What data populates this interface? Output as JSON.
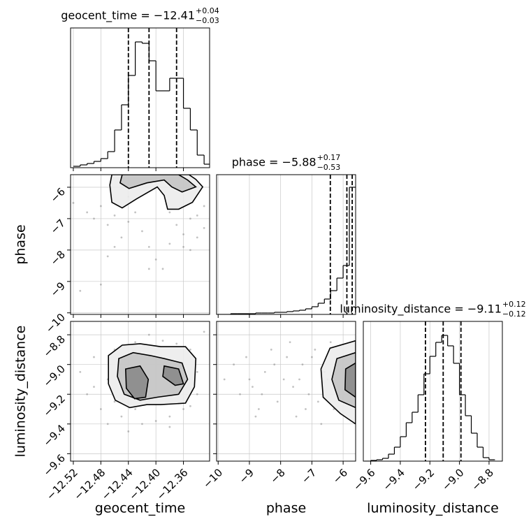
{
  "chart_data": {
    "type": "corner",
    "parameters": [
      {
        "name": "geocent_time",
        "lim": [
          -12.524,
          -12.322
        ],
        "ticks": [
          {
            "value": -12.52,
            "label": "−12.52"
          },
          {
            "value": -12.48,
            "label": "−12.48"
          },
          {
            "value": -12.44,
            "label": "−12.44"
          },
          {
            "value": -12.4,
            "label": "−12.40"
          },
          {
            "value": -12.36,
            "label": "−12.36"
          }
        ],
        "title": {
          "main": "geocent_time = −12.41",
          "upper": "+0.04",
          "lower": "−0.03"
        },
        "quantiles": [
          -12.44,
          -12.41,
          -12.37
        ],
        "hist": {
          "ylim": [
            0,
            200
          ],
          "bins": [
            -12.52,
            -12.51,
            -12.5,
            -12.49,
            -12.48,
            -12.47,
            -12.46,
            -12.45,
            -12.44,
            -12.43,
            -12.42,
            -12.41,
            -12.4,
            -12.39,
            -12.38,
            -12.37,
            -12.36,
            -12.35,
            -12.34,
            -12.33,
            -12.32
          ],
          "counts": [
            2,
            4,
            6,
            9,
            13,
            23,
            54,
            90,
            132,
            180,
            178,
            153,
            110,
            110,
            128,
            128,
            85,
            54,
            18,
            5
          ]
        }
      },
      {
        "name": "phase",
        "lim": [
          -10.05,
          -5.6
        ],
        "ticks": [
          {
            "value": -10,
            "label": "−10"
          },
          {
            "value": -9,
            "label": "−9"
          },
          {
            "value": -8,
            "label": "−8"
          },
          {
            "value": -7,
            "label": "−7"
          },
          {
            "value": -6,
            "label": "−6"
          }
        ],
        "title": {
          "main": "phase = −5.88",
          "upper": "+0.17",
          "lower": "−0.53"
        },
        "quantiles": [
          -6.41,
          -5.88,
          -5.71
        ],
        "hist": {
          "ylim": [
            0,
            200
          ],
          "bins": [
            -10.0,
            -9.8,
            -9.6,
            -9.4,
            -9.2,
            -9.0,
            -8.8,
            -8.6,
            -8.4,
            -8.2,
            -8.0,
            -7.8,
            -7.6,
            -7.4,
            -7.2,
            -7.0,
            -6.8,
            -6.6,
            -6.4,
            -6.2,
            -6.0,
            -5.8,
            -5.6
          ],
          "counts": [
            0,
            0,
            1,
            1,
            1,
            1,
            2,
            2,
            2,
            3,
            3,
            4,
            5,
            6,
            8,
            11,
            16,
            22,
            34,
            52,
            70,
            182
          ]
        }
      },
      {
        "name": "luminosity_distance",
        "lim": [
          -9.65,
          -8.71
        ],
        "ticks": [
          {
            "value": -9.6,
            "label": "−9.6"
          },
          {
            "value": -9.4,
            "label": "−9.4"
          },
          {
            "value": -9.2,
            "label": "−9.2"
          },
          {
            "value": -9.0,
            "label": "−9.0"
          },
          {
            "value": -8.8,
            "label": "−8.8"
          }
        ],
        "title": {
          "main": "luminosity_distance = −9.11",
          "upper": "+0.12",
          "lower": "−0.12"
        },
        "quantiles": [
          -9.23,
          -9.11,
          -8.99
        ],
        "hist": {
          "ylim": [
            0,
            200
          ],
          "bins": [
            -9.64,
            -9.6,
            -9.56,
            -9.52,
            -9.48,
            -9.44,
            -9.4,
            -9.36,
            -9.32,
            -9.28,
            -9.24,
            -9.2,
            -9.16,
            -9.12,
            -9.08,
            -9.04,
            -9.0,
            -8.96,
            -8.92,
            -8.88,
            -8.84,
            -8.8,
            -8.76
          ],
          "counts": [
            0,
            1,
            2,
            4,
            10,
            20,
            35,
            55,
            70,
            95,
            125,
            150,
            170,
            180,
            165,
            140,
            95,
            65,
            40,
            20,
            5,
            2
          ]
        }
      }
    ],
    "panels": [
      {
        "col": 0,
        "row": 1,
        "points": {
          "x": [
            -12.5,
            -12.49,
            -12.48,
            -12.47,
            -12.46,
            -12.45,
            -12.44,
            -12.43,
            -12.42,
            -12.41,
            -12.4,
            -12.39,
            -12.38,
            -12.37,
            -12.36,
            -12.35,
            -12.34,
            -12.33,
            -12.35,
            -12.36,
            -12.51,
            -12.48,
            -12.52,
            -12.46,
            -12.38,
            -12.34,
            -12.44,
            -12.41,
            -12.47,
            -12.33
          ],
          "y": [
            -6.8,
            -7.0,
            -6.6,
            -7.2,
            -6.9,
            -7.6,
            -7.1,
            -6.8,
            -7.4,
            -7.9,
            -8.3,
            -8.6,
            -7.8,
            -7.2,
            -7.5,
            -7.0,
            -6.9,
            -7.3,
            -8.0,
            -7.9,
            -9.3,
            -9.1,
            -6.5,
            -7.9,
            -6.8,
            -7.6,
            -6.3,
            -8.6,
            -8.2,
            -6.6
          ]
        },
        "contours": [
          {
            "x": [
              -12.464,
              -12.467,
              -12.464,
              -12.449,
              -12.428,
              -12.398,
              -12.388,
              -12.383,
              -12.367,
              -12.347,
              -12.332,
              -12.342,
              -12.352
            ],
            "y": [
              -5.6,
              -5.93,
              -6.48,
              -6.66,
              -6.37,
              -5.99,
              -6.26,
              -6.7,
              -6.7,
              -6.48,
              -5.99,
              -5.75,
              -5.6
            ]
          },
          {
            "x": [
              -12.449,
              -12.452,
              -12.439,
              -12.413,
              -12.388,
              -12.377,
              -12.362,
              -12.342,
              -12.354,
              -12.367
            ],
            "y": [
              -5.6,
              -5.86,
              -6.04,
              -5.86,
              -5.77,
              -5.99,
              -6.15,
              -5.99,
              -5.77,
              -5.6
            ]
          }
        ]
      },
      {
        "col": 0,
        "row": 2,
        "points": {
          "x": [
            -12.51,
            -12.5,
            -12.49,
            -12.48,
            -12.47,
            -12.47,
            -12.46,
            -12.45,
            -12.44,
            -12.43,
            -12.42,
            -12.41,
            -12.4,
            -12.39,
            -12.38,
            -12.37,
            -12.36,
            -12.35,
            -12.34,
            -12.33,
            -12.49,
            -12.46,
            -12.43,
            -12.4,
            -12.37,
            -12.34,
            -12.45,
            -12.41,
            -12.38,
            -12.35
          ],
          "y": [
            -9.05,
            -9.2,
            -8.95,
            -9.3,
            -9.1,
            -9.4,
            -8.9,
            -9.35,
            -9.45,
            -8.85,
            -9.4,
            -8.8,
            -9.38,
            -8.84,
            -9.42,
            -8.86,
            -9.3,
            -8.9,
            -9.2,
            -8.78,
            -9.15,
            -9.25,
            -9.3,
            -9.0,
            -9.1,
            -9.05,
            -9.0,
            -9.15,
            -9.35,
            -9.28
          ]
        },
        "contours": [
          {
            "x": [
              -12.469,
              -12.449,
              -12.423,
              -12.393,
              -12.357,
              -12.342,
              -12.344,
              -12.357,
              -12.393,
              -12.413,
              -12.438,
              -12.459,
              -12.469
            ],
            "y": [
              -8.94,
              -8.87,
              -8.86,
              -8.88,
              -8.88,
              -8.96,
              -9.15,
              -9.26,
              -9.27,
              -9.27,
              -9.29,
              -9.24,
              -9.13
            ]
          },
          {
            "x": [
              -12.454,
              -12.433,
              -12.408,
              -12.388,
              -12.362,
              -12.354,
              -12.367,
              -12.398,
              -12.423,
              -12.446,
              -12.456
            ],
            "y": [
              -8.96,
              -8.92,
              -8.94,
              -8.96,
              -8.99,
              -9.1,
              -9.2,
              -9.22,
              -9.24,
              -9.2,
              -9.08
            ]
          },
          {
            "x": [
              -12.444,
              -12.423,
              -12.411,
              -12.415,
              -12.431,
              -12.443
            ],
            "y": [
              -9.03,
              -9.01,
              -9.1,
              -9.22,
              -9.23,
              -9.16
            ]
          },
          {
            "x": [
              -12.388,
              -12.367,
              -12.36,
              -12.372,
              -12.39
            ],
            "y": [
              -9.01,
              -9.03,
              -9.13,
              -9.14,
              -9.08
            ]
          }
        ]
      },
      {
        "col": 1,
        "row": 2,
        "points": {
          "x": [
            -9.8,
            -9.5,
            -9.3,
            -9.1,
            -8.9,
            -8.7,
            -8.5,
            -8.3,
            -8.1,
            -7.9,
            -7.7,
            -7.5,
            -7.3,
            -7.1,
            -6.9,
            -6.7,
            -6.5,
            -6.3,
            -8.8,
            -8.2,
            -7.6,
            -7.0,
            -6.8,
            -6.6,
            -7.8,
            -7.2,
            -8.6,
            -9.0,
            -6.4,
            -7.4
          ],
          "y": [
            -9.1,
            -9.0,
            -9.2,
            -8.95,
            -9.15,
            -9.3,
            -9.05,
            -8.9,
            -9.25,
            -9.1,
            -8.85,
            -9.35,
            -9.0,
            -9.2,
            -8.9,
            -9.4,
            -9.1,
            -9.3,
            -9.35,
            -9.0,
            -9.15,
            -8.95,
            -9.25,
            -9.05,
            -8.95,
            -9.3,
            -9.2,
            -9.1,
            -8.85,
            -9.1
          ]
        },
        "contours": [
          {
            "x": [
              -5.6,
              -6.42,
              -6.71,
              -6.64,
              -6.09,
              -5.6
            ],
            "y": [
              -8.84,
              -8.89,
              -9.03,
              -9.22,
              -9.33,
              -9.4
            ]
          },
          {
            "x": [
              -5.6,
              -6.2,
              -6.36,
              -6.14,
              -5.6
            ],
            "y": [
              -8.92,
              -8.96,
              -9.1,
              -9.24,
              -9.29
            ]
          },
          {
            "x": [
              -5.6,
              -5.92,
              -5.94,
              -5.6
            ],
            "y": [
              -8.99,
              -9.03,
              -9.17,
              -9.22
            ]
          }
        ]
      }
    ]
  }
}
